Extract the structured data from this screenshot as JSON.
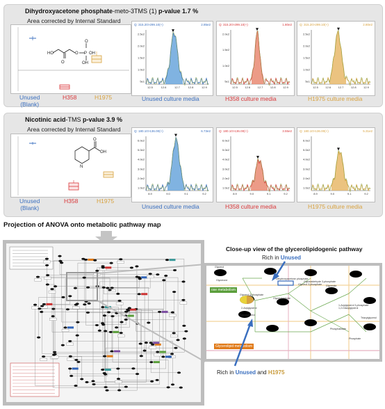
{
  "panels": [
    {
      "title_compound": "Dihydroxyacetone phosphate",
      "title_suffix": "-meto-3TMS (1)",
      "title_pvalue": " p-value 1.7 %",
      "subtitle": "Area corrected by Internal Standard",
      "groups": [
        {
          "label": "Unused\n(Blank)",
          "color": "#3a6fbf"
        },
        {
          "label": "H358",
          "color": "#d9383a"
        },
        {
          "label": "H1975",
          "color": "#d8a23f"
        }
      ],
      "chromatograms": [
        {
          "header_left": "Q: 315.20>299.10(+)",
          "header_right": "2.85e2",
          "caption": "Unused culture media",
          "color": "#3a6fbf",
          "fill": "#6aa6dc",
          "yticks": [
            "2.5e2",
            "2.0e2",
            "1.5e2",
            "1.0e2",
            "5e1"
          ],
          "xticks": [
            "12.5",
            "12.6",
            "12.7",
            "12.8",
            "12.9"
          ]
        },
        {
          "header_left": "Q: 315.20>299.10(+)",
          "header_right": "1.80e2",
          "caption": "H358 culture media",
          "color": "#d9383a",
          "fill": "#e98a72",
          "yticks": [
            "2.0e2",
            "1.5e2",
            "1.0e2",
            "5e1"
          ],
          "xticks": [
            "12.5",
            "12.6",
            "12.7",
            "12.8",
            "12.9"
          ]
        },
        {
          "header_left": "Q: 315.20>299.10(+)",
          "header_right": "2.80e2",
          "caption": "H1975 culture media",
          "color": "#d8a23f",
          "fill": "#e8b86a",
          "yticks": [
            "2.5e2",
            "2.0e2",
            "1.5e2",
            "1.0e2",
            "5e1"
          ],
          "xticks": [
            "12.5",
            "12.6",
            "12.7",
            "12.8",
            "12.9"
          ]
        }
      ]
    },
    {
      "title_compound": "Nicotinic acid",
      "title_suffix": "-TMS",
      "title_pvalue": "  p-value 3.9 %",
      "subtitle": "Area corrected by Internal Standard",
      "groups": [
        {
          "label": "Unused\n(Blank)",
          "color": "#3a6fbf"
        },
        {
          "label": "H358",
          "color": "#d9383a"
        },
        {
          "label": "H1975",
          "color": "#d8a23f"
        }
      ],
      "chromatograms": [
        {
          "header_left": "Q: 180.10>136.00(+)",
          "header_right": "6.73e2",
          "caption": "Unused culture media",
          "color": "#3a6fbf",
          "fill": "#6aa6dc",
          "yticks": [
            "6.0e2",
            "5.0e2",
            "4.0e2",
            "3.0e2",
            "2.0e2",
            "1.0e2"
          ],
          "xticks": [
            "8.9",
            "9.0",
            "9.1",
            "9.2"
          ]
        },
        {
          "header_left": "Q: 180.10>136.00(+)",
          "header_right": "3.55e2",
          "caption": "H358 culture media",
          "color": "#d9383a",
          "fill": "#e98a72",
          "yticks": [
            "6.0e2",
            "5.0e2",
            "4.0e2",
            "3.0e2",
            "2.0e2",
            "1.0e2"
          ],
          "xticks": [
            "8.9",
            "9.0",
            "9.1",
            "9.2"
          ]
        },
        {
          "header_left": "Q: 180.10>136.00(+)",
          "header_right": "5.31e2",
          "caption": "H1975 culture media",
          "color": "#d8a23f",
          "fill": "#e8b86a",
          "yticks": [
            "6.0e2",
            "5.0e2",
            "4.0e2",
            "3.0e2",
            "2.0e2",
            "1.0e2"
          ],
          "xticks": [
            "8.9",
            "9.0",
            "9.1",
            "9.2"
          ]
        }
      ]
    }
  ],
  "pathway": {
    "section_title": "Projection of ANOVA onto metabolic pathway map",
    "closeup_title": "Close-up view of the glycerolipidogenic pathway",
    "rich_unused_prefix": "Rich in ",
    "rich_unused_word": "Unused",
    "rich_both_prefix": "Rich in ",
    "rich_both_word1": "Unused",
    "rich_both_and": " and ",
    "rich_both_word2": "H1975",
    "tag_green": "ose metabolism",
    "tag_orange": "Glycerolipid metabolism",
    "labels": [
      "Glycerol",
      "Glycerone",
      "Dihydroxyacetone phosphate",
      "Glycerol 3-phosphate",
      "Glyceraldehyde",
      "Glycerol 3-phosphate",
      "Glyceraldehyde 3-phosphate",
      "Glycerate",
      "2-Acylglycerol",
      "1-Acylglycerol 3-phosphate",
      "Diacylglycerol",
      "1,2-Diacylglycerol",
      "Phosphatidate",
      "Triacylglycerol",
      "Phosphate"
    ]
  },
  "colors": {
    "unused": "#3a6fbf",
    "h358": "#d9383a",
    "h1975": "#d8a23f"
  }
}
